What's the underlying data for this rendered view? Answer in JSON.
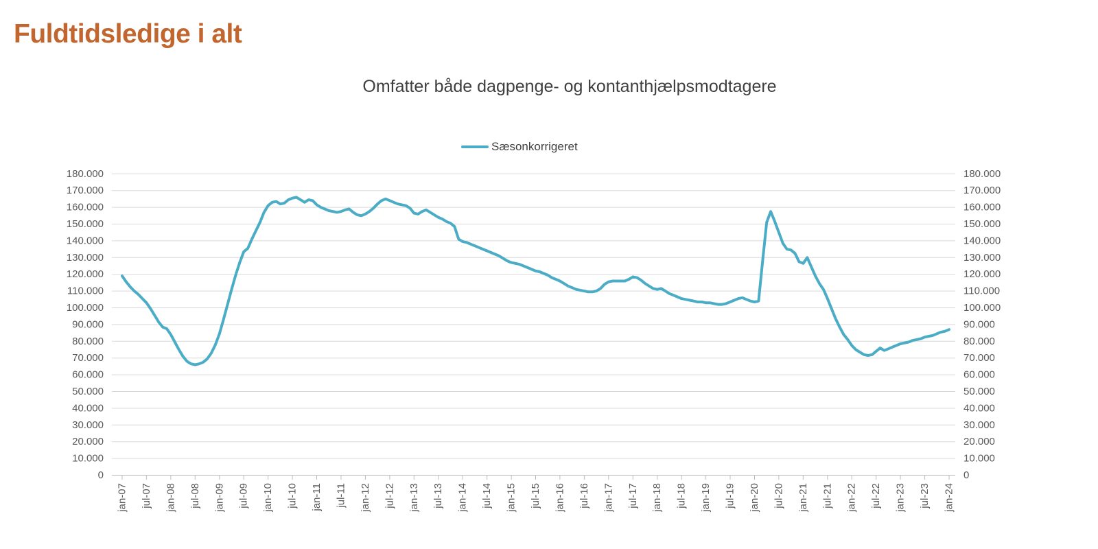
{
  "header": {
    "title": "Fuldtidsledige i alt"
  },
  "chart": {
    "subtitle": "Omfatter både dagpenge- og kontanthjælpsmodtagere",
    "legend_label": "Sæsonkorrigeret",
    "line_color": "#4BACC6",
    "title_color": "#C2662F"
  },
  "chart_data": {
    "type": "line",
    "title": "Omfatter både dagpenge- og kontanthjælpsmodtagere",
    "xlabel": "",
    "ylabel": "",
    "ylim": [
      0,
      180000
    ],
    "y_tick_step": 10000,
    "y_tick_labels": [
      "0",
      "10.000",
      "20.000",
      "30.000",
      "40.000",
      "50.000",
      "60.000",
      "70.000",
      "80.000",
      "90.000",
      "100.000",
      "110.000",
      "120.000",
      "130.000",
      "140.000",
      "150.000",
      "160.000",
      "170.000",
      "180.000"
    ],
    "x_tick_labels": [
      "jan-07",
      "jul-07",
      "jan-08",
      "jul-08",
      "jan-09",
      "jul-09",
      "jan-10",
      "jul-10",
      "jan-11",
      "jul-11",
      "jan-12",
      "jul-12",
      "jan-13",
      "jul-13",
      "jan-14",
      "jul-14",
      "jan-15",
      "jul-15",
      "jan-16",
      "jul-16",
      "jan-17",
      "jul-17",
      "jan-18",
      "jul-18",
      "jan-19",
      "jul-19",
      "jan-20",
      "jul-20",
      "jan-21",
      "jul-21",
      "jan-22",
      "jul-22",
      "jan-23",
      "jul-23",
      "jan-24"
    ],
    "x_tick_every": 6,
    "grid": "horizontal",
    "dual_y_axis": true,
    "legend_position": "top-center",
    "series": [
      {
        "name": "Sæsonkorrigeret",
        "color": "#4BACC6",
        "frequency": "monthly",
        "x_start": "2007-01",
        "x_end": "2024-01",
        "values": [
          119000,
          115500,
          112500,
          110000,
          108000,
          105500,
          103000,
          99500,
          95500,
          91500,
          88500,
          87500,
          84000,
          79500,
          75000,
          71000,
          68000,
          66500,
          66000,
          66500,
          67500,
          69500,
          73000,
          78000,
          84500,
          93000,
          102000,
          111000,
          119500,
          127000,
          133500,
          135500,
          141000,
          146000,
          151000,
          157000,
          161000,
          163000,
          163500,
          162000,
          162500,
          164500,
          165500,
          166000,
          164500,
          163000,
          164500,
          164000,
          161500,
          160000,
          159000,
          158000,
          157500,
          157000,
          157500,
          158500,
          159000,
          157000,
          155500,
          155000,
          156000,
          157500,
          159500,
          162000,
          164000,
          165000,
          164000,
          163000,
          162000,
          161500,
          161000,
          159500,
          156500,
          156000,
          157500,
          158500,
          157000,
          155500,
          154000,
          153000,
          151500,
          150500,
          148500,
          141000,
          139500,
          139000,
          138000,
          137000,
          136000,
          135000,
          134000,
          133000,
          132000,
          131000,
          129500,
          128000,
          127000,
          126500,
          126000,
          125000,
          124000,
          123000,
          122000,
          121500,
          120500,
          119500,
          118000,
          117000,
          116000,
          114500,
          113000,
          112000,
          111000,
          110500,
          110000,
          109500,
          109500,
          110000,
          111500,
          114000,
          115500,
          116000,
          116000,
          116000,
          116000,
          117000,
          118500,
          118000,
          116500,
          114500,
          113000,
          111500,
          111000,
          111500,
          110000,
          108500,
          107500,
          106500,
          105500,
          105000,
          104500,
          104000,
          103500,
          103500,
          103000,
          103000,
          102500,
          102000,
          102000,
          102500,
          103500,
          104500,
          105500,
          106000,
          105000,
          104000,
          103500,
          104000,
          128000,
          151000,
          157500,
          151500,
          145000,
          138500,
          135000,
          134500,
          132500,
          127500,
          126500,
          130000,
          124500,
          119000,
          114500,
          111000,
          105500,
          99500,
          93500,
          88500,
          84000,
          81000,
          77500,
          75000,
          73500,
          72000,
          71500,
          72000,
          74000,
          76000,
          74500,
          75500,
          76500,
          77500,
          78500,
          79000,
          79500,
          80500,
          81000,
          81500,
          82500,
          83000,
          83500,
          84500,
          85500,
          86000,
          87000
        ]
      }
    ]
  }
}
